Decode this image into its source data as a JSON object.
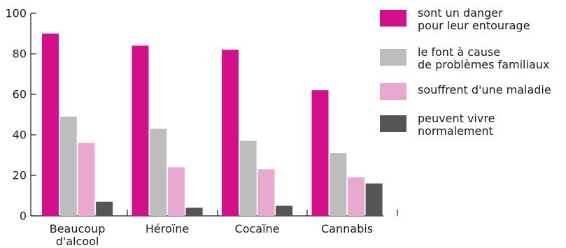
{
  "chart_data": {
    "type": "bar",
    "categories": [
      [
        "Beaucoup",
        "d'alcool"
      ],
      [
        "Héroïne"
      ],
      [
        "Cocaïne"
      ],
      [
        "Cannabis"
      ]
    ],
    "series": [
      {
        "name": "sont un danger pour leur entourage",
        "label_lines": [
          "sont un danger",
          "pour leur entourage"
        ],
        "color": "#d40f8a",
        "values": [
          90,
          84,
          82,
          62
        ]
      },
      {
        "name": "le font à cause de problèmes familiaux",
        "label_lines": [
          "le font à cause",
          "de problèmes familiaux"
        ],
        "color": "#bdbdbd",
        "values": [
          49,
          43,
          37,
          31
        ]
      },
      {
        "name": "souffrent d'une maladie",
        "label_lines": [
          "souffrent d'une maladie"
        ],
        "color": "#e9a8cd",
        "values": [
          36,
          24,
          23,
          19
        ]
      },
      {
        "name": "peuvent vivre normalement",
        "label_lines": [
          "peuvent vivre",
          "normalement"
        ],
        "color": "#555555",
        "values": [
          7,
          4,
          5,
          16
        ]
      }
    ],
    "ylim": [
      0,
      100
    ],
    "yticks": [
      0,
      20,
      40,
      60,
      80,
      100
    ],
    "xlabel": "",
    "ylabel": "",
    "grid": false,
    "legend_position": "right"
  }
}
